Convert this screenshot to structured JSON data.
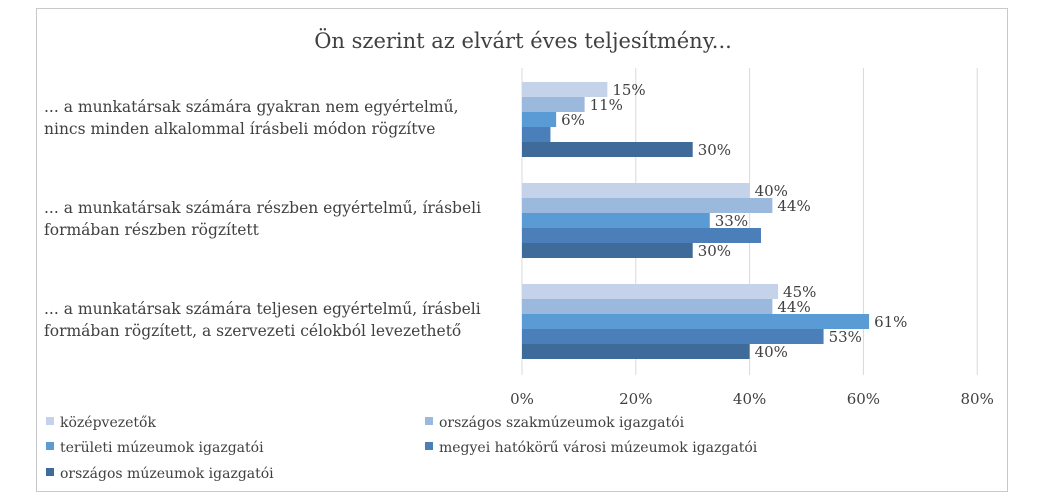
{
  "chart_data": {
    "type": "bar",
    "orientation": "horizontal",
    "title": "Ön szerint az elvárt éves teljesítmény...",
    "categories": [
      [
        "... a munkatársak számára gyakran nem egyértelmű,",
        "nincs minden alkalommal írásbeli módon rögzítve"
      ],
      [
        "... a munkatársak számára részben egyértelmű, írásbeli",
        "formában részben rögzített"
      ],
      [
        "... a munkatársak számára teljesen egyértelmű, írásbeli",
        "formában rögzített, a szervezeti célokból levezethető"
      ]
    ],
    "series": [
      {
        "name": "középvezetők",
        "color": "#c5d3ea",
        "values": [
          15,
          40,
          45
        ]
      },
      {
        "name": "országos szakmúzeumok igazgatói",
        "color": "#9bb8dd",
        "values": [
          11,
          44,
          44
        ]
      },
      {
        "name": "területi  múzeumok igazgatói",
        "color": "#5b9bd5",
        "values": [
          6,
          33,
          61
        ]
      },
      {
        "name": "megyei hatókörű városi múzeumok igazgatói",
        "color": "#4a7fb9",
        "values": [
          5,
          42,
          53
        ]
      },
      {
        "name": "országos múzeumok igazgatói",
        "color": "#3e6b99",
        "values": [
          30,
          30,
          40
        ]
      }
    ],
    "data_labels": [
      [
        "15%",
        "11%",
        "6%",
        "",
        "30%"
      ],
      [
        "40%",
        "44%",
        "33%",
        "",
        "30%"
      ],
      [
        "45%",
        "44%",
        "61%",
        "53%",
        "40%"
      ]
    ],
    "xticks": [
      "0%",
      "20%",
      "40%",
      "60%",
      "80%"
    ],
    "xlim": [
      0,
      80
    ],
    "grid": true,
    "legend_position": "bottom"
  }
}
